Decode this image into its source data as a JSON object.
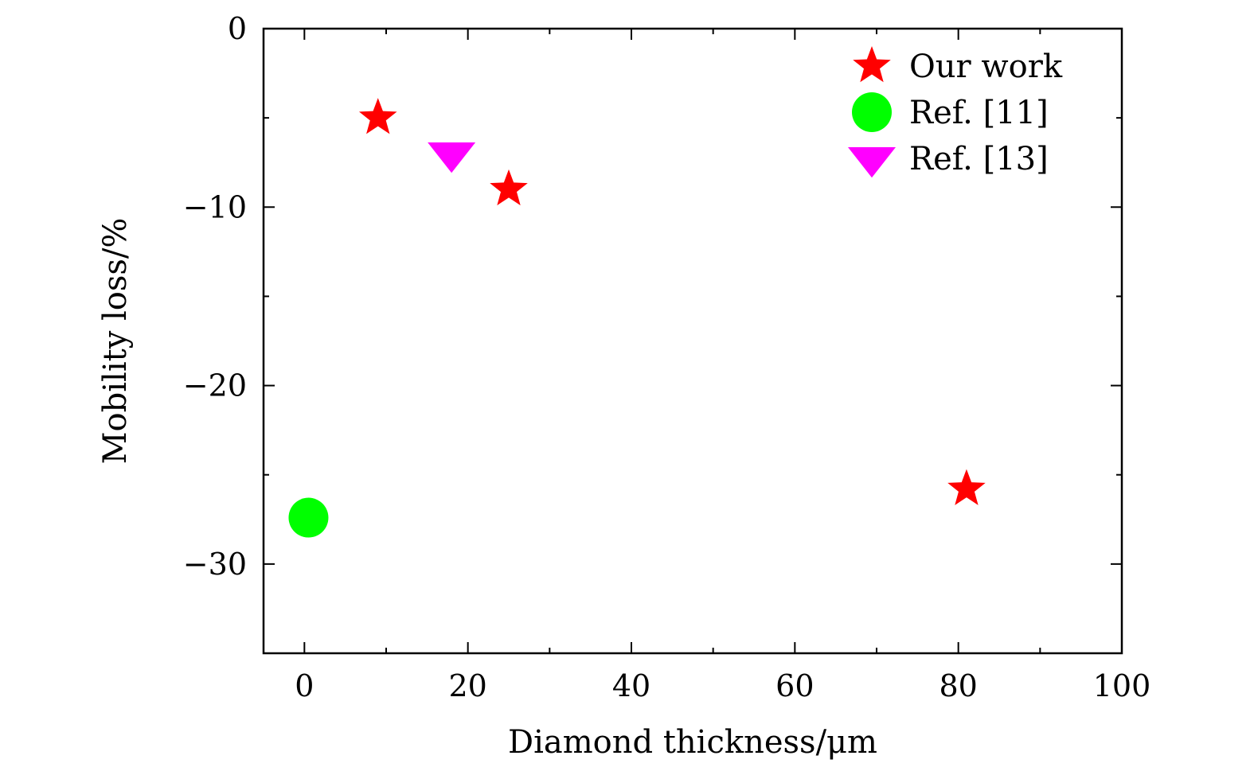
{
  "chart_data": {
    "type": "scatter",
    "title": "",
    "xlabel": "Diamond thickness/μm",
    "ylabel": "Mobility loss/%",
    "xlim": [
      -5,
      100
    ],
    "ylim": [
      -35,
      0
    ],
    "x_ticks": [
      0,
      20,
      40,
      60,
      80,
      100
    ],
    "x_tick_labels": [
      "0",
      "20",
      "40",
      "60",
      "80",
      "100"
    ],
    "x_minor_ticks": [
      10,
      30,
      50,
      70,
      90
    ],
    "y_ticks": [
      0,
      -10,
      -20,
      -30
    ],
    "y_tick_labels": [
      "0",
      "−10",
      "−20",
      "−30"
    ],
    "y_minor_ticks": [
      -5,
      -15,
      -25
    ],
    "grid": false,
    "legend_position": "top-right",
    "series": [
      {
        "name": "Our work",
        "marker": "star",
        "color": "#ff0000",
        "points": [
          {
            "x": 9,
            "y": -5
          },
          {
            "x": 25,
            "y": -9
          },
          {
            "x": 81,
            "y": -25.8
          }
        ]
      },
      {
        "name": "Ref. [11]",
        "marker": "circle",
        "color": "#00ff00",
        "points": [
          {
            "x": 0.5,
            "y": -27.4
          }
        ]
      },
      {
        "name": "Ref. [13]",
        "marker": "triangle-down",
        "color": "#ff00ff",
        "points": [
          {
            "x": 18,
            "y": -7
          }
        ]
      }
    ]
  }
}
